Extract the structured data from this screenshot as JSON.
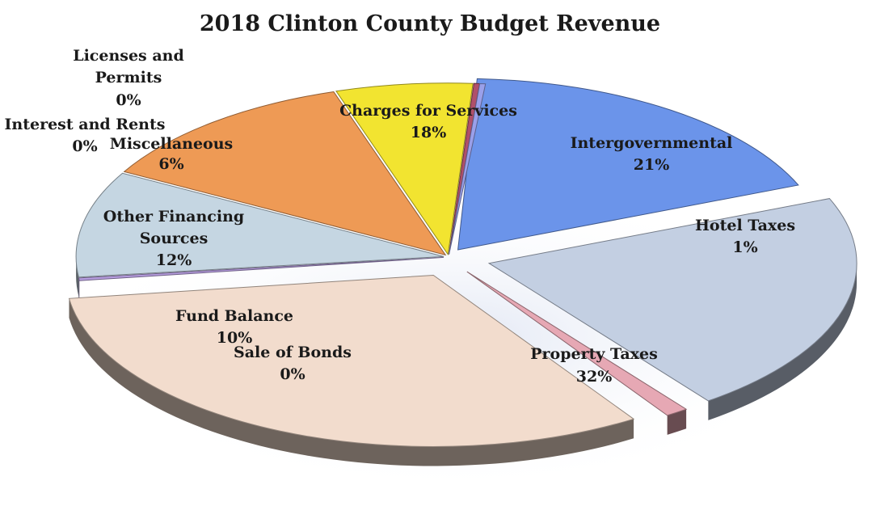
{
  "chart_data": {
    "type": "pie",
    "title": "2018 Clinton County Budget Revenue",
    "slices": [
      {
        "label": "Charges for Services",
        "display": "18%",
        "value": 18,
        "color": "#6b94ea"
      },
      {
        "label": "Intergovernmental",
        "display": "21%",
        "value": 21,
        "color": "#c3cfe2"
      },
      {
        "label": "Hotel Taxes",
        "display": "1%",
        "value": 1,
        "color": "#e6a8b4"
      },
      {
        "label": "Property Taxes",
        "display": "32%",
        "value": 32,
        "color": "#f2dccd"
      },
      {
        "label": "Sale of Bonds",
        "display": "0%",
        "value": 0,
        "color": "#b79ee0"
      },
      {
        "label": "Fund Balance",
        "display": "10%",
        "value": 10,
        "color": "#c5d6e2"
      },
      {
        "label": "Other Financing Sources",
        "display": "12%",
        "value": 12,
        "color": "#ee9a55"
      },
      {
        "label": "Miscellaneous",
        "display": "6%",
        "value": 6,
        "color": "#f2e430"
      },
      {
        "label": "Interest and Rents",
        "display": "0%",
        "value": 0,
        "color": "#b0506a"
      },
      {
        "label": "Licenses and Permits",
        "display": "0%",
        "value": 0,
        "color": "#9aa0ea"
      }
    ]
  }
}
